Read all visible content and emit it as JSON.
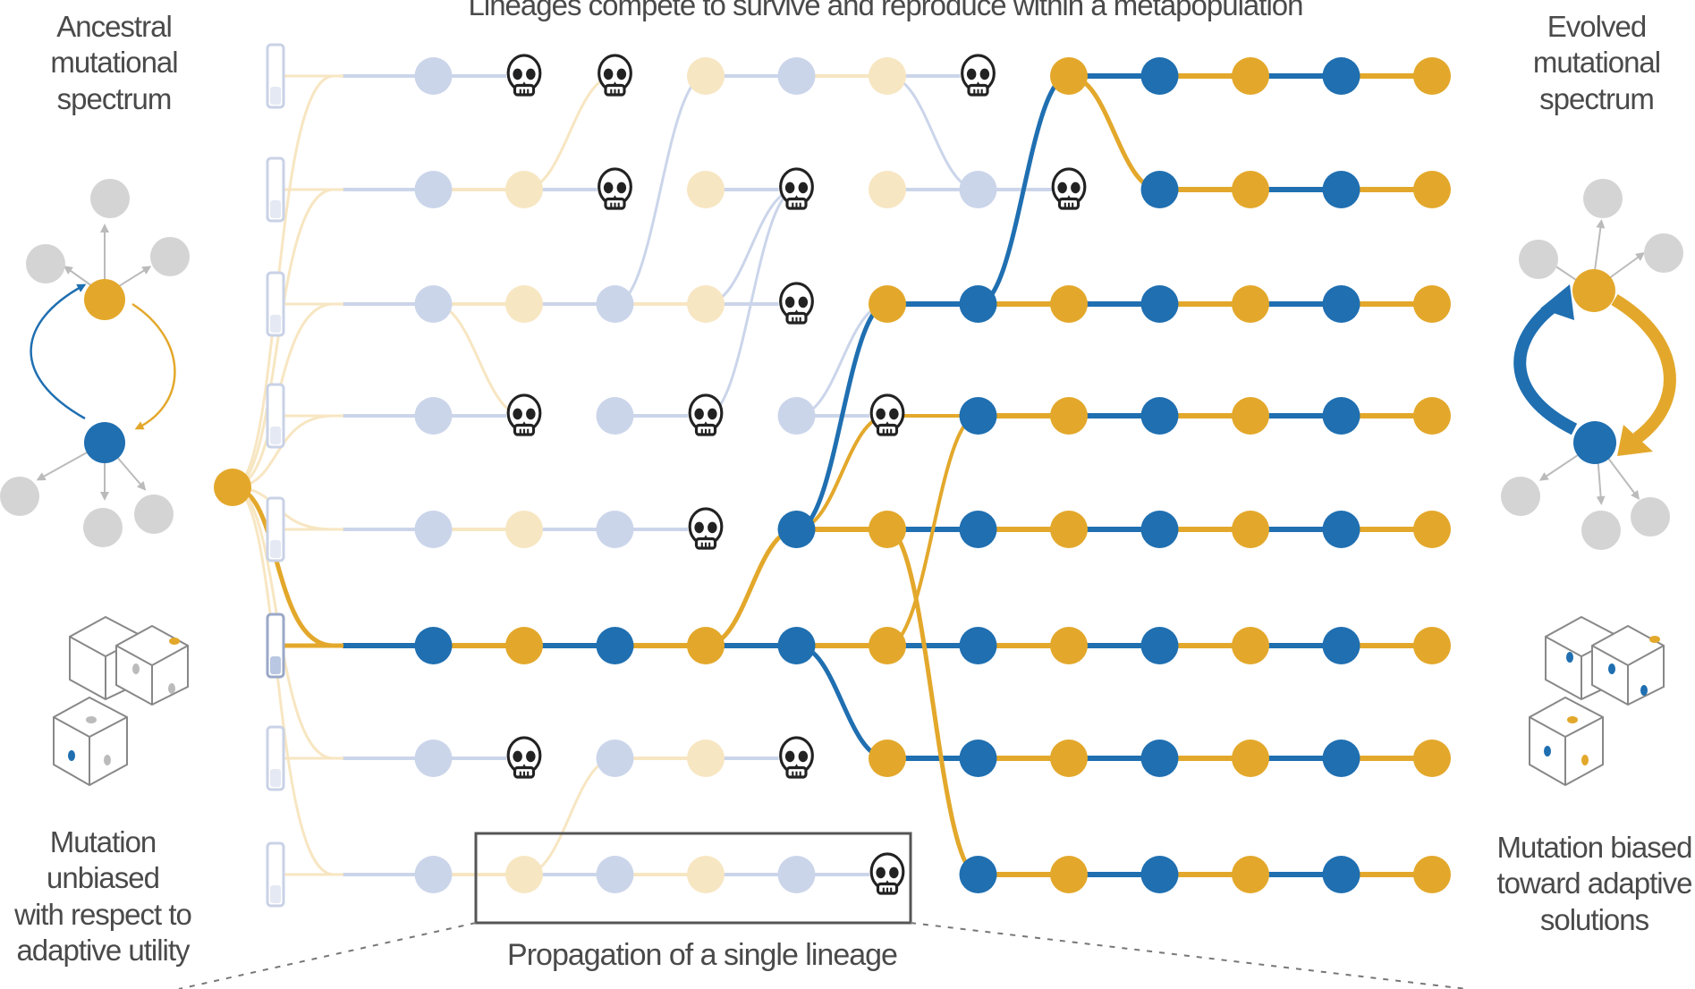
{
  "title": "Lineages compete to survive and reproduce within a metapopulation",
  "left_panel": {
    "spectrum_label": [
      "Ancestral",
      "mutational",
      "spectrum"
    ],
    "mutation_label": [
      "Mutation unbiased",
      "with respect to",
      "adaptive utility"
    ]
  },
  "right_panel": {
    "spectrum_label": [
      "Evolved",
      "mutational",
      "spectrum"
    ],
    "mutation_label": [
      "Mutation biased",
      "toward adaptive",
      "solutions"
    ]
  },
  "inset_label": "Propagation of a single lineage",
  "colors": {
    "gold": "#E3A82B",
    "blue": "#1F6FB1",
    "faded_gold": "#F7E6C2",
    "faded_blue": "#CBD5EA",
    "gray": "#D4D4D4",
    "text": "#4a4a4a"
  },
  "icons": {
    "death": "skull-icon",
    "tube": "test-tube-icon",
    "dice": "dice-icon"
  },
  "grid": {
    "columns": 13,
    "rows": [
      {
        "states": [
          "T",
          "F",
          "F",
          "F",
          "G",
          "F",
          "G",
          "X",
          "G",
          "B",
          "G",
          "B",
          "G"
        ],
        "faded": "lb,x,lk,lk,x,x,x,x,0,0,0,0,0"
      },
      {
        "states": [
          "T",
          "F",
          "F",
          "X",
          "G",
          "X",
          "G",
          "F",
          "X",
          "B",
          "G",
          "B",
          "G"
        ]
      },
      {
        "states": [
          "T",
          "F",
          "G",
          "F",
          "G",
          "X",
          "G",
          "B",
          "G",
          "B",
          "G",
          "B",
          "G"
        ]
      },
      {
        "states": [
          "T",
          "F",
          "X",
          "F",
          "X",
          "F",
          "X",
          "B",
          "G",
          "B",
          "G",
          "B",
          "G"
        ]
      },
      {
        "states": [
          "T",
          "F",
          "G",
          "F",
          "X",
          "B",
          "G",
          "B",
          "G",
          "B",
          "G",
          "B",
          "G"
        ]
      },
      {
        "states": [
          "T",
          "B",
          "G",
          "B",
          "G",
          "B",
          "G",
          "B",
          "G",
          "B",
          "G",
          "B",
          "G"
        ]
      },
      {
        "states": [
          "T",
          "F",
          "X",
          "F",
          "G",
          "X",
          "G",
          "B",
          "G",
          "B",
          "G",
          "B",
          "G"
        ]
      },
      {
        "states": [
          "T",
          "F",
          "G",
          "F",
          "G",
          "F",
          "X",
          "B",
          "G",
          "B",
          "G",
          "B",
          "G"
        ]
      }
    ]
  }
}
